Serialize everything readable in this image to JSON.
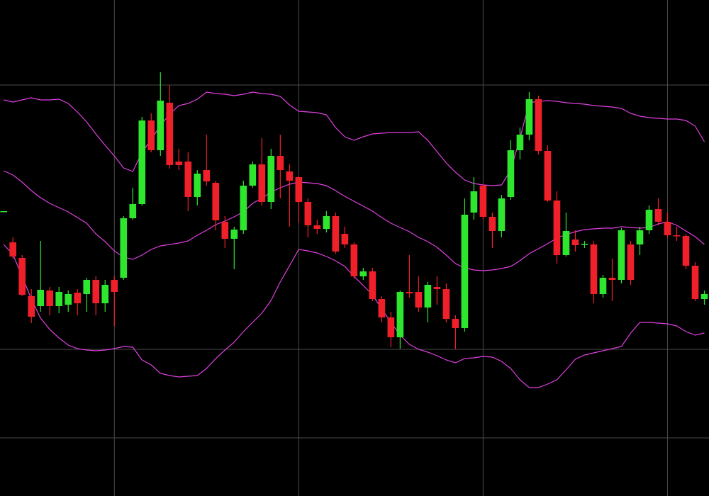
{
  "chart_data": {
    "type": "candlestick",
    "up_color": "#2ee62e",
    "down_color": "#f0202a",
    "grid": true,
    "grid_color": "#4a4a4a",
    "ylim": [
      0,
      700
    ],
    "yticks": [
      82,
      207,
      580
    ],
    "xlim": [
      -0.4,
      76.5
    ],
    "xticks": [
      12,
      32,
      52,
      72
    ],
    "open": [
      402,
      358,
      336,
      282,
      268,
      290,
      268,
      270,
      287,
      285,
      305,
      272,
      305,
      308,
      392,
      412,
      530,
      488,
      555,
      472,
      472,
      422,
      460,
      442,
      387,
      363,
      375,
      438,
      468,
      415,
      480,
      458,
      450,
      415,
      382,
      377,
      395,
      370,
      355,
      310,
      317,
      278,
      252,
      224,
      288,
      288,
      266,
      295,
      292,
      250,
      237,
      400,
      438,
      394,
      374,
      422,
      488,
      510,
      560,
      487,
      417,
      340,
      362,
      355,
      355,
      285,
      308,
      305,
      355,
      355,
      375,
      405,
      387,
      368,
      367,
      325,
      278
    ],
    "high": [
      402,
      365,
      340,
      292,
      360,
      295,
      295,
      290,
      292,
      308,
      310,
      305,
      310,
      395,
      435,
      535,
      540,
      598,
      580,
      490,
      485,
      460,
      510,
      445,
      395,
      380,
      445,
      472,
      505,
      490,
      510,
      468,
      452,
      420,
      390,
      402,
      400,
      380,
      358,
      322,
      322,
      282,
      260,
      290,
      340,
      310,
      302,
      310,
      300,
      255,
      420,
      450,
      440,
      400,
      425,
      502,
      520,
      570,
      565,
      495,
      430,
      400,
      375,
      360,
      360,
      312,
      335,
      378,
      360,
      380,
      410,
      420,
      400,
      380,
      370,
      330,
      290
    ],
    "low": [
      402,
      335,
      282,
      244,
      260,
      255,
      258,
      260,
      255,
      260,
      255,
      260,
      240,
      305,
      390,
      410,
      485,
      480,
      462,
      460,
      402,
      410,
      438,
      375,
      350,
      320,
      370,
      435,
      410,
      405,
      420,
      380,
      385,
      365,
      370,
      372,
      342,
      350,
      307,
      305,
      275,
      245,
      210,
      208,
      280,
      260,
      245,
      270,
      245,
      207,
      232,
      390,
      390,
      350,
      365,
      418,
      475,
      502,
      482,
      415,
      328,
      338,
      345,
      350,
      272,
      280,
      275,
      300,
      298,
      340,
      370,
      382,
      365,
      360,
      320,
      275,
      270
    ],
    "close": [
      402,
      338,
      284,
      253,
      291,
      268,
      288,
      285,
      272,
      305,
      272,
      298,
      288,
      392,
      412,
      530,
      488,
      558,
      467,
      467,
      422,
      455,
      444,
      389,
      363,
      376,
      438,
      468,
      415,
      480,
      460,
      445,
      415,
      382,
      377,
      395,
      345,
      355,
      310,
      317,
      278,
      252,
      224,
      288,
      286,
      266,
      298,
      292,
      250,
      237,
      397,
      430,
      394,
      374,
      420,
      488,
      510,
      560,
      487,
      417,
      340,
      374,
      354,
      356,
      285,
      308,
      305,
      375,
      305,
      375,
      404,
      387,
      368,
      367,
      325,
      278,
      285
    ],
    "bands": [
      {
        "color": "#e040e0",
        "values": [
          559,
          556,
          559,
          562,
          559,
          559,
          560,
          554,
          542,
          528,
          511,
          495,
          480,
          463,
          458,
          485,
          503,
          523,
          539,
          551,
          554,
          560,
          570,
          568,
          567,
          565,
          567,
          570,
          568,
          567,
          564,
          552,
          543,
          542,
          541,
          538,
          520,
          507,
          502,
          507,
          511,
          512,
          513,
          513,
          513,
          514,
          502,
          486,
          470,
          457,
          446,
          441,
          439,
          438,
          439,
          460,
          505,
          555,
          557,
          558,
          557,
          555,
          554,
          553,
          551,
          550,
          549,
          547,
          540,
          536,
          534,
          533,
          532,
          532,
          530,
          522,
          500
        ]
      },
      {
        "color": "#e040e0",
        "values": [
          459,
          453,
          443,
          431,
          421,
          413,
          407,
          401,
          393,
          385,
          370,
          359,
          346,
          337,
          334,
          340,
          348,
          353,
          355,
          357,
          360,
          368,
          375,
          383,
          388,
          394,
          401,
          413,
          420,
          429,
          435,
          440,
          443,
          442,
          441,
          438,
          431,
          423,
          416,
          409,
          402,
          393,
          385,
          379,
          373,
          365,
          359,
          351,
          340,
          328,
          322,
          319,
          318,
          319,
          321,
          324,
          332,
          342,
          349,
          356,
          364,
          369,
          373,
          376,
          377,
          378,
          378,
          380,
          379,
          378,
          379,
          384,
          387,
          382,
          374,
          366,
          355
        ]
      },
      {
        "color": "#e040e0",
        "values": [
          355,
          341,
          310,
          278,
          251,
          235,
          223,
          213,
          208,
          206,
          205,
          206,
          208,
          211,
          210,
          192,
          185,
          173,
          170,
          168,
          169,
          170,
          180,
          194,
          206,
          217,
          232,
          245,
          258,
          276,
          302,
          325,
          348,
          346,
          343,
          338,
          332,
          324,
          310,
          297,
          284,
          264,
          245,
          227,
          214,
          207,
          203,
          198,
          192,
          188,
          194,
          195,
          197,
          196,
          190,
          180,
          164,
          153,
          153,
          158,
          164,
          178,
          193,
          199,
          202,
          205,
          208,
          211,
          230,
          245,
          245,
          244,
          243,
          240,
          232,
          227,
          230
        ]
      }
    ]
  }
}
